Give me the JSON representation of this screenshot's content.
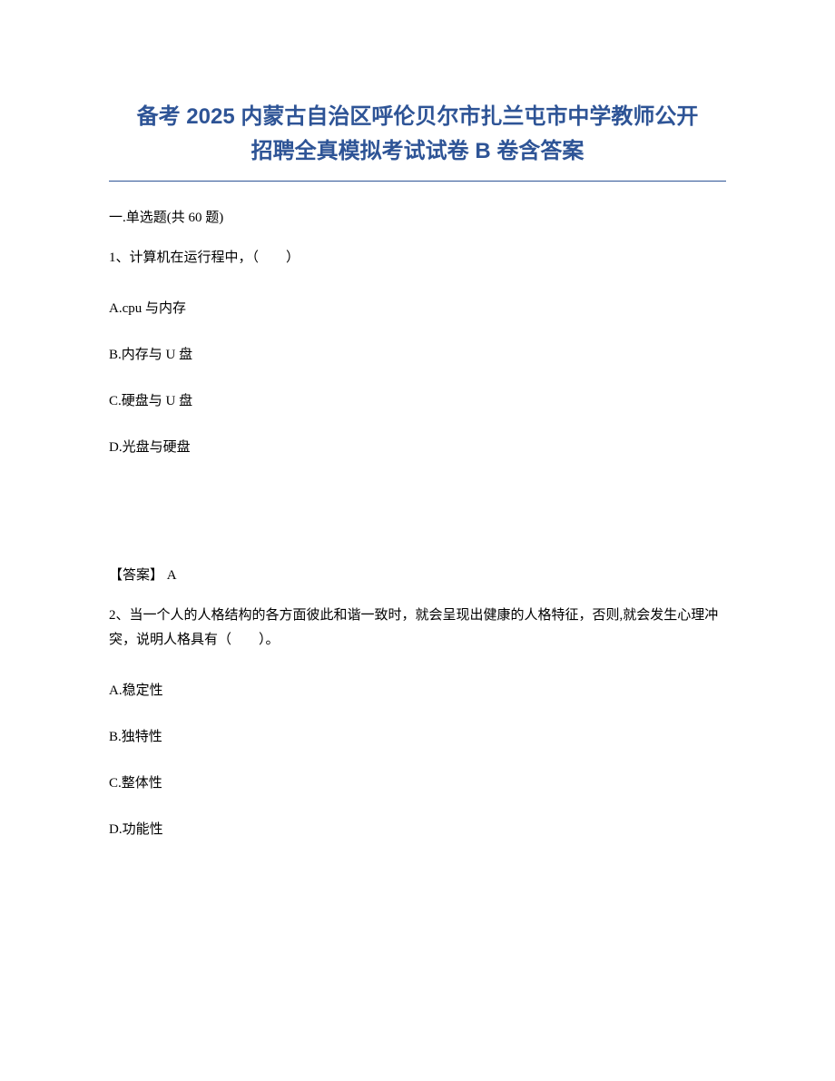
{
  "title": {
    "line1": "备考 2025 内蒙古自治区呼伦贝尔市扎兰屯市中学教师公开",
    "line2": "招聘全真模拟考试试卷 B 卷含答案",
    "color": "#2e5496",
    "fontsize": 24
  },
  "section": {
    "header": "一.单选题(共 60 题)"
  },
  "question1": {
    "text": "1、计算机在运行程中，（　　）",
    "options": {
      "A": "A.cpu 与内存",
      "B": "B.内存与 U 盘",
      "C": "C.硬盘与 U 盘",
      "D": "D.光盘与硬盘"
    },
    "answer": "【答案】 A"
  },
  "question2": {
    "text": "2、当一个人的人格结构的各方面彼此和谐一致时，就会呈现出健康的人格特征，否则,就会发生心理冲突，说明人格具有（　　）。",
    "options": {
      "A": "A.稳定性",
      "B": "B.独特性",
      "C": "C.整体性",
      "D": "D.功能性"
    }
  },
  "colors": {
    "title_color": "#2e5496",
    "text_color": "#000000",
    "background": "#ffffff",
    "border_color": "#2e5496"
  },
  "typography": {
    "title_fontsize": 24,
    "body_fontsize": 15,
    "title_font": "Microsoft YaHei",
    "body_font": "SimSun"
  }
}
